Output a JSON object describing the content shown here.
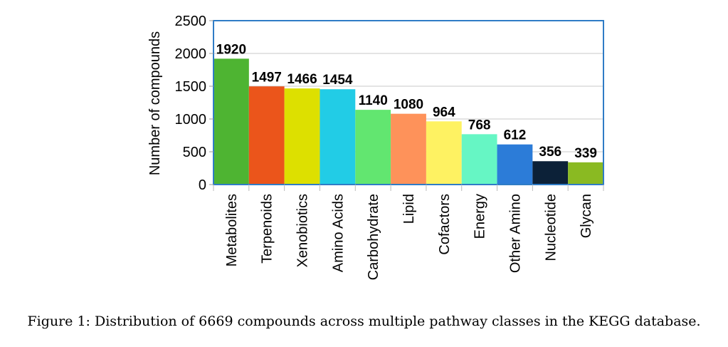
{
  "chart_data": {
    "type": "bar",
    "categories": [
      "Metabolites",
      "Terpenoids",
      "Xenobiotics",
      "Amino Acids",
      "Carbohydrate",
      "Lipid",
      "Cofactors",
      "Energy",
      "Other Amino",
      "Nucleotide",
      "Glycan"
    ],
    "values": [
      1920,
      1497,
      1466,
      1454,
      1140,
      1080,
      964,
      768,
      612,
      356,
      339
    ],
    "colors": [
      "#4eb432",
      "#eb551b",
      "#dde000",
      "#22cce6",
      "#62e670",
      "#fe925a",
      "#fef262",
      "#66f6c4",
      "#2c7cd8",
      "#0c2138",
      "#8aba22"
    ],
    "data_labels": [
      "1920",
      "1497",
      "1466",
      "1454",
      "1140",
      "1080",
      "964",
      "768",
      "612",
      "356",
      "339"
    ],
    "ylabel": "Number of compounds",
    "ylim": [
      0,
      2500
    ],
    "yticks": [
      0,
      500,
      1000,
      1500,
      2000,
      2500
    ],
    "ytick_labels": [
      "0",
      "500",
      "1000",
      "1500",
      "2000",
      "2500"
    ],
    "grid": true,
    "frame_color": "#2f7cc6",
    "grid_color": "#c8c8c8"
  },
  "caption": "Figure 1: Distribution of 6669 compounds across multiple pathway classes in the KEGG database."
}
